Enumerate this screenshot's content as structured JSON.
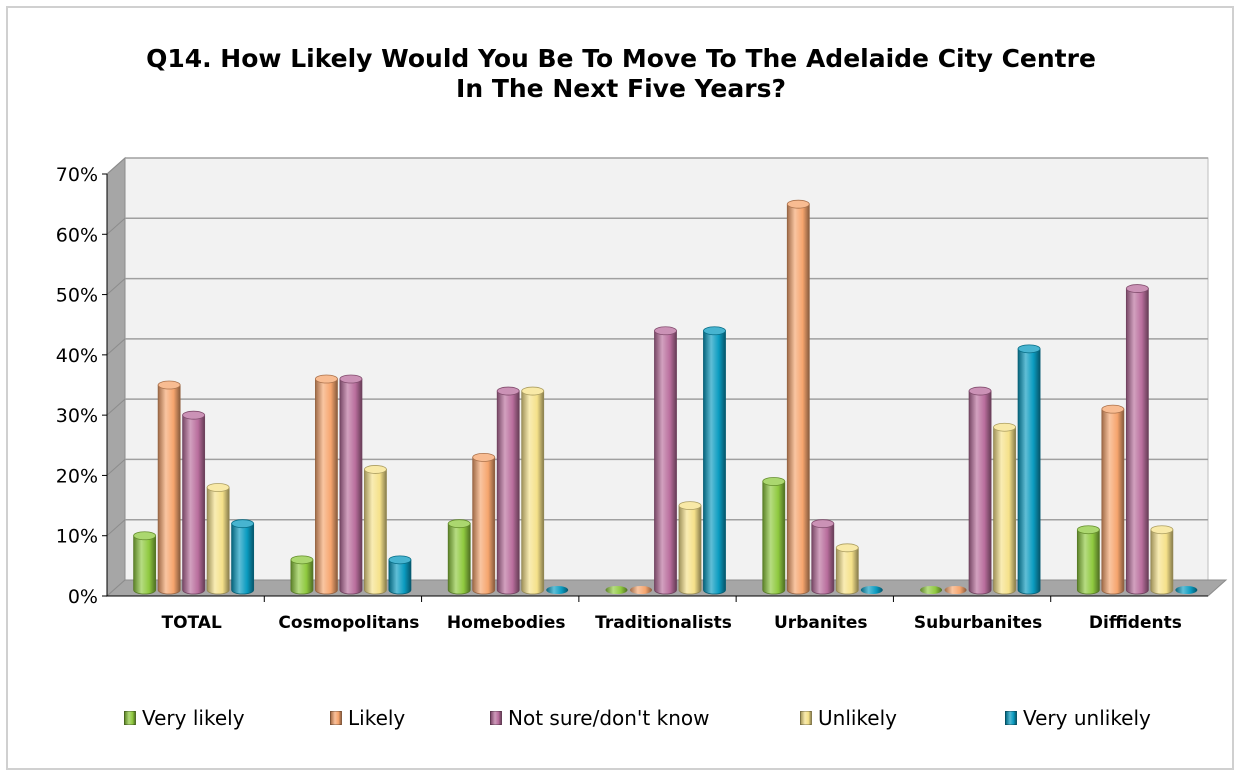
{
  "chart_data": {
    "type": "bar",
    "title": "Q14. How Likely Would You Be To Move To The Adelaide City Centre\nIn The Next Five Years?",
    "categories": [
      "TOTAL",
      "Cosmopolitans",
      "Homebodies",
      "Traditionalists",
      "Urbanites",
      "Suburbanites",
      "Diffidents"
    ],
    "yticks": [
      "0%",
      "10%",
      "20%",
      "30%",
      "40%",
      "50%",
      "60%",
      "70%"
    ],
    "ylim": [
      0,
      70
    ],
    "grid": true,
    "legend_position": "bottom",
    "series": [
      {
        "name": "Very likely",
        "color": "#8fc93f",
        "values": [
          9,
          5,
          11,
          0,
          18,
          0,
          10
        ]
      },
      {
        "name": "Likely",
        "color": "#f6a56e",
        "values": [
          34,
          35,
          22,
          0,
          64,
          0,
          30
        ]
      },
      {
        "name": "Not sure/don't know",
        "color": "#b96e9d",
        "values": [
          29,
          35,
          33,
          43,
          11,
          33,
          50
        ]
      },
      {
        "name": "Unlikely",
        "color": "#f5e18a",
        "values": [
          17,
          20,
          33,
          14,
          7,
          27,
          10
        ]
      },
      {
        "name": "Very unlikely",
        "color": "#0a9bc0",
        "values": [
          11,
          5,
          0,
          43,
          0,
          40,
          0
        ]
      }
    ]
  }
}
